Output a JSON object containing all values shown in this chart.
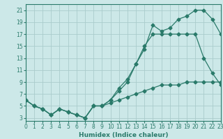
{
  "xlabel": "Humidex (Indice chaleur)",
  "bg_color": "#cce8e8",
  "grid_color": "#aacccc",
  "line_color": "#2a7a6a",
  "line1_x": [
    0,
    1,
    2,
    3,
    4,
    5,
    6,
    7,
    8,
    9,
    10,
    11,
    12,
    13,
    14,
    15,
    16,
    17,
    18,
    19,
    20,
    21,
    22,
    23
  ],
  "line1_y": [
    6,
    5,
    4.5,
    3.5,
    4.5,
    4,
    3.5,
    3,
    5,
    5,
    6,
    8,
    9.5,
    12,
    14.5,
    18.5,
    17.5,
    18,
    19.5,
    20,
    21,
    21,
    19.5,
    17
  ],
  "line2_x": [
    0,
    1,
    2,
    3,
    4,
    5,
    6,
    7,
    8,
    9,
    10,
    11,
    12,
    13,
    14,
    15,
    16,
    17,
    18,
    19,
    20,
    21,
    22,
    23
  ],
  "line2_y": [
    6,
    5,
    4.5,
    3.5,
    4.5,
    4,
    3.5,
    3,
    5,
    5,
    6,
    7.5,
    9,
    12,
    15,
    17,
    17,
    17,
    17,
    17,
    17,
    13,
    10.5,
    8.5
  ],
  "line3_x": [
    0,
    1,
    2,
    3,
    4,
    5,
    6,
    7,
    8,
    9,
    10,
    11,
    12,
    13,
    14,
    15,
    16,
    17,
    18,
    19,
    20,
    21,
    22,
    23
  ],
  "line3_y": [
    6,
    5,
    4.5,
    3.5,
    4.5,
    4,
    3.5,
    3,
    5,
    5,
    5.5,
    6,
    6.5,
    7,
    7.5,
    8,
    8.5,
    8.5,
    8.5,
    9,
    9,
    9,
    9,
    9
  ],
  "xlim": [
    0,
    23
  ],
  "ylim": [
    2.5,
    22
  ],
  "yticks": [
    3,
    5,
    7,
    9,
    11,
    13,
    15,
    17,
    19,
    21
  ],
  "xticks": [
    0,
    1,
    2,
    3,
    4,
    5,
    6,
    7,
    8,
    9,
    10,
    11,
    12,
    13,
    14,
    15,
    16,
    17,
    18,
    19,
    20,
    21,
    22,
    23
  ],
  "tick_fontsize": 5.5,
  "xlabel_fontsize": 6.5
}
